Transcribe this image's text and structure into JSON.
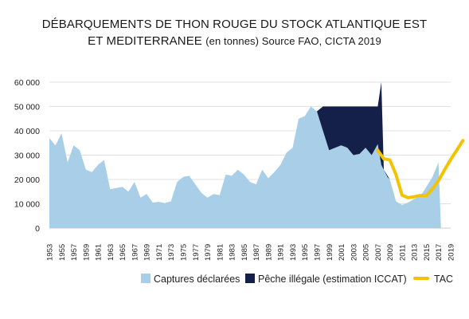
{
  "chart_data": {
    "type": "area",
    "title_line1": "DÉBARQUEMENTS DE THON ROUGE DU STOCK ATLANTIQUE EST",
    "title_line2_main": "ET MEDITERRANEE",
    "title_line2_sub": "(en tonnes) Source FAO, CICTA 2019",
    "ylim": [
      0,
      60000
    ],
    "y_ticks": [
      {
        "value": 0,
        "label": "0"
      },
      {
        "value": 10000,
        "label": "10 000"
      },
      {
        "value": 20000,
        "label": "20 000"
      },
      {
        "value": 30000,
        "label": "30 000"
      },
      {
        "value": 40000,
        "label": "40 000"
      },
      {
        "value": 50000,
        "label": "50 000"
      },
      {
        "value": 60000,
        "label": "60 000"
      }
    ],
    "x_tick_labels": [
      "1953",
      "1955",
      "1957",
      "1959",
      "1961",
      "1963",
      "1965",
      "1967",
      "1969",
      "1971",
      "1973",
      "1975",
      "1977",
      "1979",
      "1981",
      "1983",
      "1985",
      "1987",
      "1989",
      "1991",
      "1993",
      "1995",
      "1997",
      "1999",
      "2001",
      "2003",
      "2005",
      "2007",
      "2009",
      "2011",
      "2013",
      "2015",
      "2017",
      "2019"
    ],
    "xlim": [
      1953,
      2019
    ],
    "grid": true,
    "legend_position": "bottom",
    "series": [
      {
        "name": "Captures déclarées",
        "kind": "area",
        "color": "#a9cfe8",
        "points": [
          [
            1953,
            37000
          ],
          [
            1954,
            34000
          ],
          [
            1955,
            39000
          ],
          [
            1956,
            27000
          ],
          [
            1957,
            34000
          ],
          [
            1958,
            32000
          ],
          [
            1959,
            24000
          ],
          [
            1960,
            23000
          ],
          [
            1961,
            26000
          ],
          [
            1962,
            28000
          ],
          [
            1963,
            16000
          ],
          [
            1964,
            16500
          ],
          [
            1965,
            17000
          ],
          [
            1966,
            15000
          ],
          [
            1967,
            19000
          ],
          [
            1968,
            12500
          ],
          [
            1969,
            14000
          ],
          [
            1970,
            10500
          ],
          [
            1971,
            10800
          ],
          [
            1972,
            10300
          ],
          [
            1973,
            11000
          ],
          [
            1974,
            19000
          ],
          [
            1975,
            21000
          ],
          [
            1976,
            21500
          ],
          [
            1977,
            18000
          ],
          [
            1978,
            14500
          ],
          [
            1979,
            12500
          ],
          [
            1980,
            14000
          ],
          [
            1981,
            13500
          ],
          [
            1982,
            22000
          ],
          [
            1983,
            21500
          ],
          [
            1984,
            24000
          ],
          [
            1985,
            22000
          ],
          [
            1986,
            19000
          ],
          [
            1987,
            18000
          ],
          [
            1988,
            24000
          ],
          [
            1989,
            20500
          ],
          [
            1990,
            23000
          ],
          [
            1991,
            26000
          ],
          [
            1992,
            31000
          ],
          [
            1993,
            33000
          ],
          [
            1994,
            45000
          ],
          [
            1995,
            46000
          ],
          [
            1996,
            50000
          ],
          [
            1997,
            48000
          ],
          [
            1998,
            40000
          ],
          [
            1999,
            32000
          ],
          [
            2000,
            33000
          ],
          [
            2001,
            34000
          ],
          [
            2002,
            33000
          ],
          [
            2003,
            30000
          ],
          [
            2004,
            30500
          ],
          [
            2005,
            33000
          ],
          [
            2006,
            30000
          ],
          [
            2007,
            34500
          ],
          [
            2008,
            24000
          ],
          [
            2009,
            20000
          ],
          [
            2010,
            11000
          ],
          [
            2011,
            9500
          ],
          [
            2012,
            10500
          ],
          [
            2013,
            12000
          ],
          [
            2014,
            13000
          ],
          [
            2015,
            17000
          ],
          [
            2016,
            21000
          ],
          [
            2017,
            27000
          ],
          [
            2017.4,
            0
          ],
          [
            2019,
            0
          ]
        ]
      },
      {
        "name": "Pêche illégale (estimation ICCAT)",
        "kind": "area",
        "color": "#14204a",
        "points": [
          [
            1997,
            48000
          ],
          [
            1998,
            50000
          ],
          [
            1999,
            50000
          ],
          [
            2000,
            50000
          ],
          [
            2001,
            50000
          ],
          [
            2002,
            50000
          ],
          [
            2003,
            50000
          ],
          [
            2004,
            50000
          ],
          [
            2005,
            50000
          ],
          [
            2006,
            50000
          ],
          [
            2007,
            50000
          ],
          [
            2007.6,
            60000
          ],
          [
            2008,
            24000
          ],
          [
            2009,
            20000
          ],
          [
            2008.6,
            21000
          ],
          [
            2007.6,
            26000
          ],
          [
            2007,
            34500
          ],
          [
            2006,
            30000
          ],
          [
            2005,
            33000
          ],
          [
            2004,
            30500
          ],
          [
            2003,
            30000
          ],
          [
            2002,
            33000
          ],
          [
            2001,
            34000
          ],
          [
            2000,
            33000
          ],
          [
            1999,
            32000
          ],
          [
            1998,
            40000
          ]
        ]
      },
      {
        "name": "TAC",
        "kind": "line",
        "color": "#f2c300",
        "points": [
          [
            2007,
            32000
          ],
          [
            2008,
            28500
          ],
          [
            2009,
            28000
          ],
          [
            2010,
            22000
          ],
          [
            2011,
            13500
          ],
          [
            2012,
            12500
          ],
          [
            2013,
            12900
          ],
          [
            2014,
            13400
          ],
          [
            2015,
            13400
          ],
          [
            2016,
            16100
          ],
          [
            2017,
            19500
          ],
          [
            2018,
            24000
          ],
          [
            2019,
            28200
          ],
          [
            2020,
            32000
          ],
          [
            2021,
            36000
          ]
        ]
      }
    ]
  }
}
